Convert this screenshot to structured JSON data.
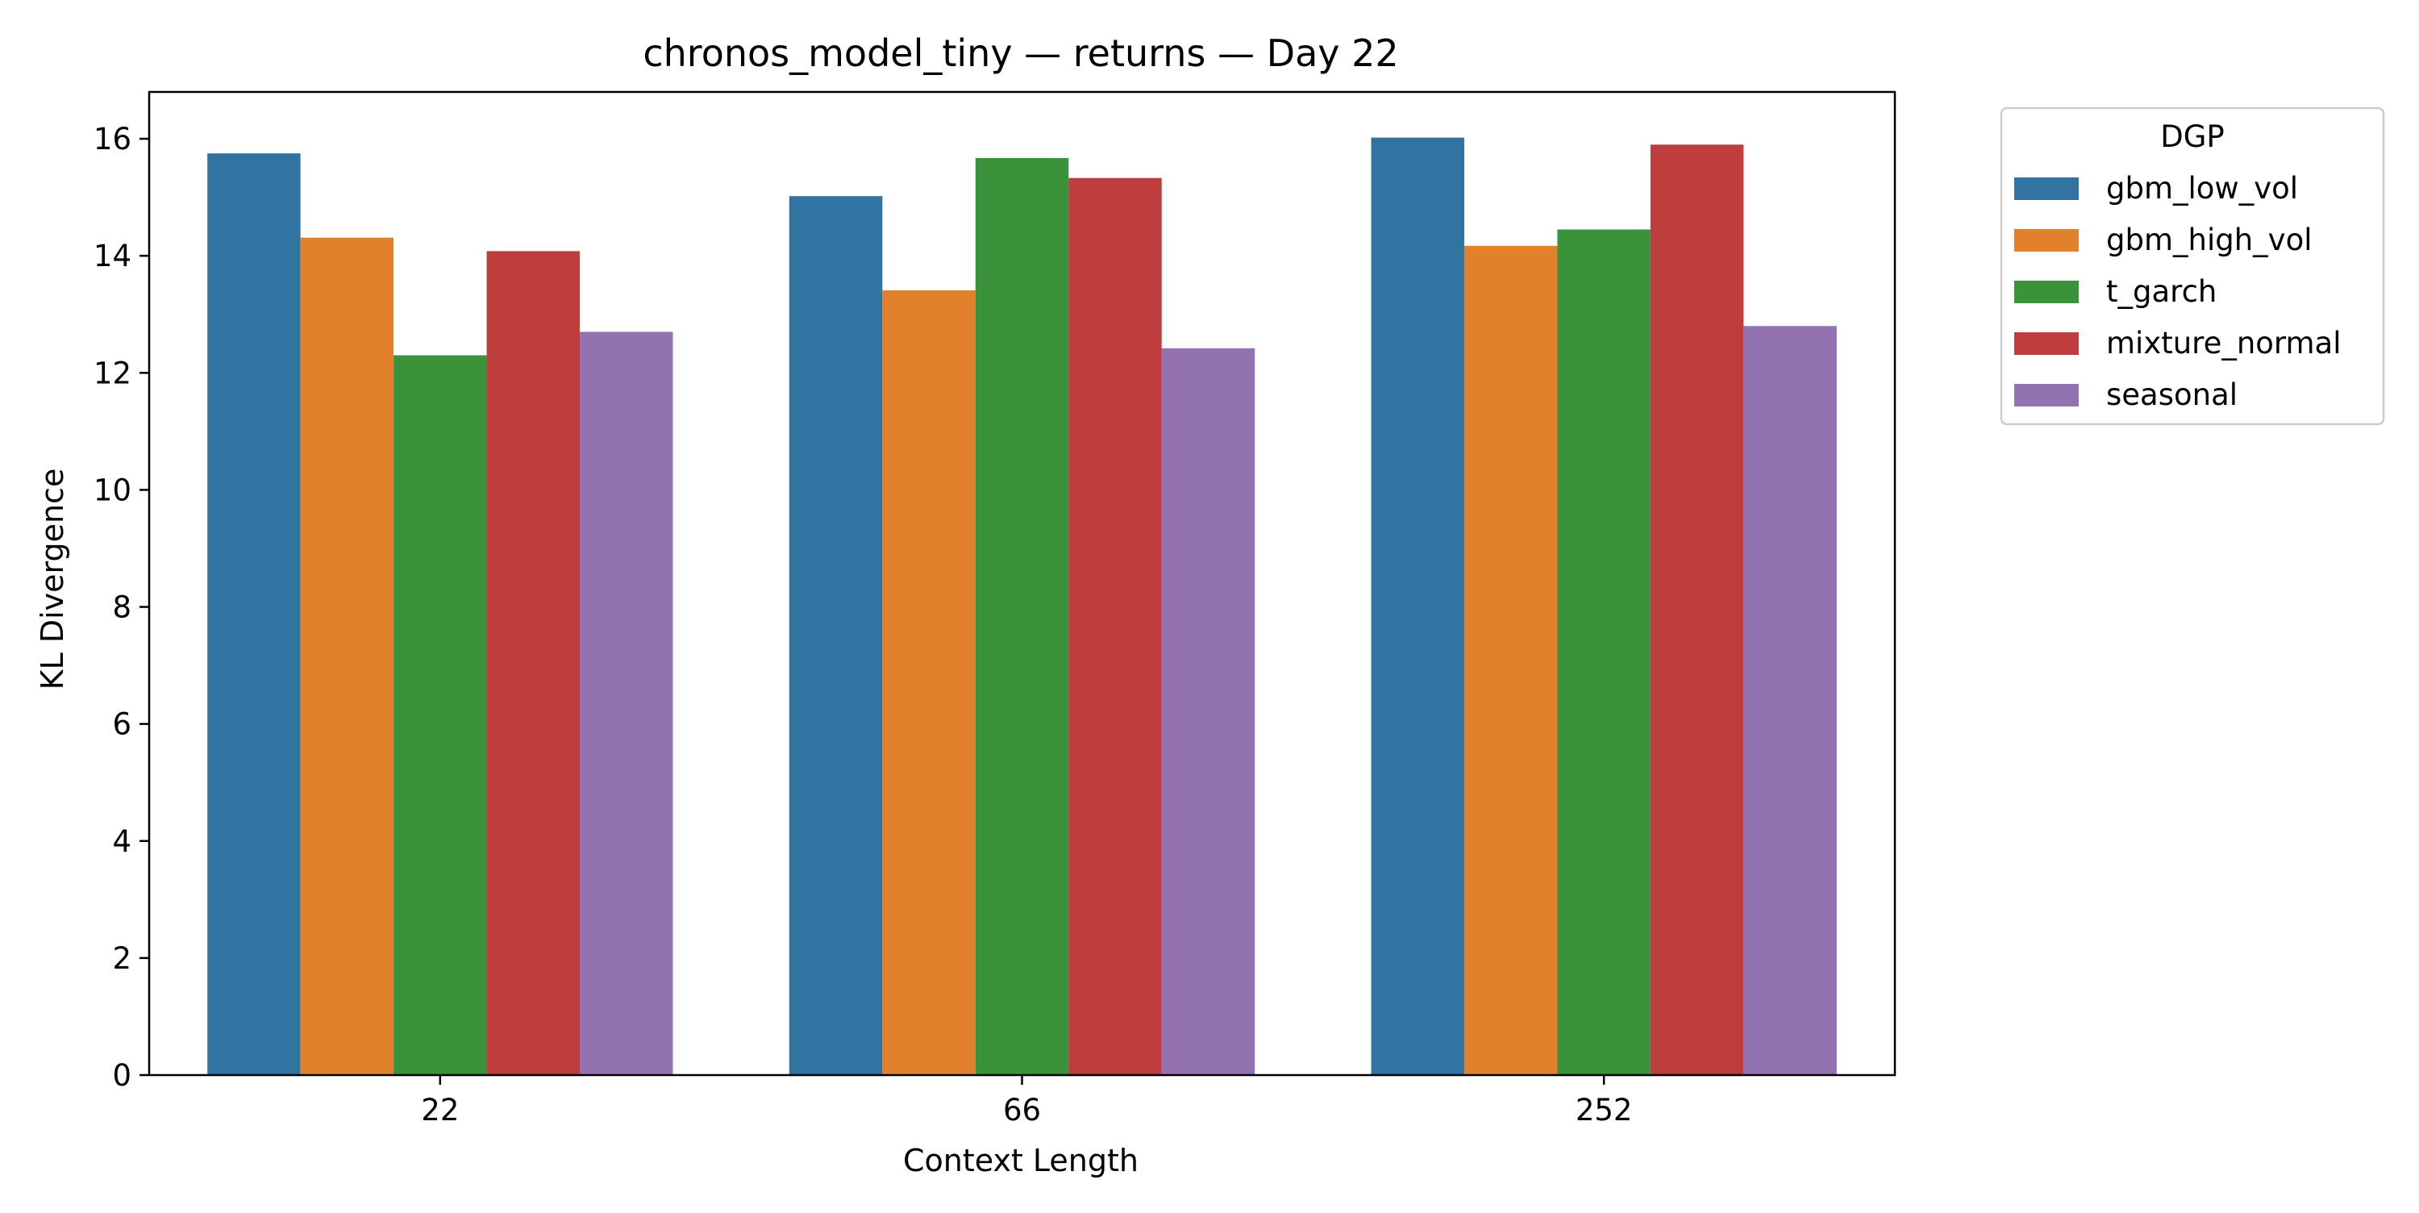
{
  "chart_data": {
    "type": "bar",
    "title": "chronos_model_tiny — returns — Day 22",
    "xlabel": "Context Length",
    "ylabel": "KL Divergence",
    "categories": [
      "22",
      "66",
      "252"
    ],
    "ylim": [
      0,
      16.8
    ],
    "yticks": [
      0,
      2,
      4,
      6,
      8,
      10,
      12,
      14,
      16
    ],
    "grid": false,
    "legend": {
      "title": "DGP",
      "position": "outside-top-right"
    },
    "series": [
      {
        "name": "gbm_low_vol",
        "color": "#3274a1",
        "values": [
          15.75,
          15.02,
          16.02
        ]
      },
      {
        "name": "gbm_high_vol",
        "color": "#e1812c",
        "values": [
          14.31,
          13.41,
          14.17
        ]
      },
      {
        "name": "t_garch",
        "color": "#3a923a",
        "values": [
          12.3,
          15.67,
          14.45
        ]
      },
      {
        "name": "mixture_normal",
        "color": "#c03d3e",
        "values": [
          14.08,
          15.33,
          15.9
        ]
      },
      {
        "name": "seasonal",
        "color": "#9372b2",
        "values": [
          12.7,
          12.42,
          12.8
        ]
      }
    ]
  }
}
